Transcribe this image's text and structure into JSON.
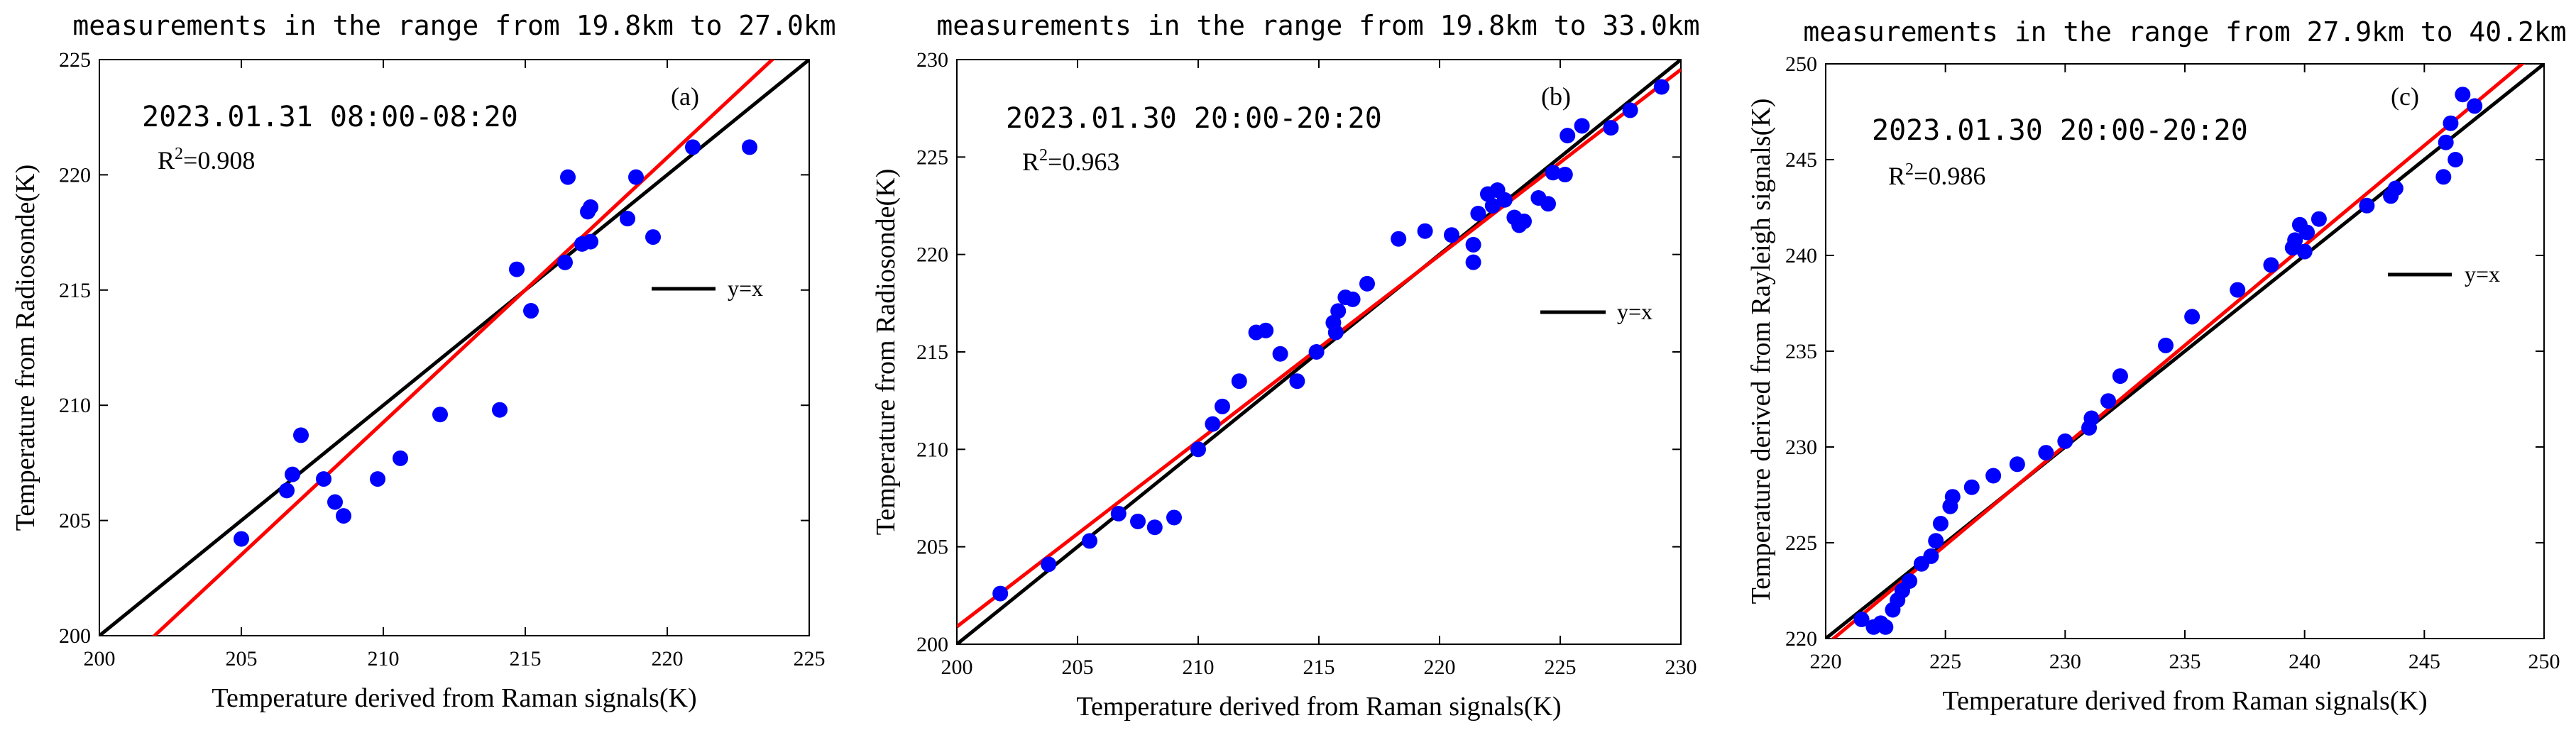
{
  "chart_data": [
    {
      "type": "scatter",
      "title": "measurements in the range from 19.8km to 27.0km",
      "xlabel": "Temperature derived from Raman signals(K)",
      "ylabel": "Temperature from Radiosonde(K)",
      "xlim": [
        200,
        225
      ],
      "ylim": [
        200,
        225
      ],
      "xticks": [
        "200",
        "205",
        "210",
        "215",
        "220",
        "225"
      ],
      "yticks": [
        "200",
        "205",
        "210",
        "215",
        "220",
        "225"
      ],
      "annotation": "2023.01.31 08:00-08:20",
      "r2_prefix": "R",
      "r2_sup": "2",
      "r2_value": "=0.908",
      "panel_label": "(a)",
      "legend_label": "y=x",
      "reference_line": {
        "name": "y=x",
        "color": "#000000"
      },
      "fit_line": {
        "slope": 1.149,
        "intercept": -32.03,
        "color": "#ff0000"
      },
      "point_color": "#0000ff",
      "points": [
        [
          205.0,
          204.2
        ],
        [
          206.6,
          206.3
        ],
        [
          206.8,
          207.0
        ],
        [
          207.1,
          208.7
        ],
        [
          207.9,
          206.8
        ],
        [
          208.3,
          205.8
        ],
        [
          208.6,
          205.2
        ],
        [
          209.8,
          206.8
        ],
        [
          210.6,
          207.7
        ],
        [
          212.0,
          209.6
        ],
        [
          214.1,
          209.8
        ],
        [
          214.7,
          215.9
        ],
        [
          215.2,
          214.1
        ],
        [
          216.4,
          216.2
        ],
        [
          216.5,
          219.9
        ],
        [
          217.0,
          217.0
        ],
        [
          217.2,
          218.4
        ],
        [
          217.3,
          218.6
        ],
        [
          217.3,
          217.1
        ],
        [
          218.6,
          218.1
        ],
        [
          218.9,
          219.9
        ],
        [
          219.5,
          217.3
        ],
        [
          220.9,
          221.2
        ],
        [
          222.9,
          221.2
        ]
      ]
    },
    {
      "type": "scatter",
      "title": "measurements in the range from 19.8km to 33.0km",
      "xlabel": "Temperature derived from Raman signals(K)",
      "ylabel": "Temperature from Radiosonde(K)",
      "xlim": [
        200,
        230
      ],
      "ylim": [
        200,
        230
      ],
      "xticks": [
        "200",
        "205",
        "210",
        "215",
        "220",
        "225",
        "230"
      ],
      "yticks": [
        "200",
        "205",
        "210",
        "215",
        "220",
        "225",
        "230"
      ],
      "annotation": "2023.01.30 20:00-20:20",
      "r2_prefix": "R",
      "r2_sup": "2",
      "r2_value": "=0.963",
      "panel_label": "(b)",
      "legend_label": "y=x",
      "reference_line": {
        "name": "y=x",
        "color": "#000000"
      },
      "fit_line": {
        "slope": 0.953,
        "intercept": 10.3,
        "color": "#ff0000"
      },
      "point_color": "#0000ff",
      "points": [
        [
          201.8,
          202.6
        ],
        [
          203.8,
          204.1
        ],
        [
          205.5,
          205.3
        ],
        [
          206.7,
          206.7
        ],
        [
          207.5,
          206.3
        ],
        [
          208.2,
          206.0
        ],
        [
          209.0,
          206.5
        ],
        [
          210.0,
          210.0
        ],
        [
          210.6,
          211.3
        ],
        [
          211.0,
          212.2
        ],
        [
          211.7,
          213.5
        ],
        [
          212.4,
          216.0
        ],
        [
          212.8,
          216.1
        ],
        [
          213.4,
          214.9
        ],
        [
          214.1,
          213.5
        ],
        [
          214.9,
          215.0
        ],
        [
          215.6,
          216.5
        ],
        [
          215.8,
          217.1
        ],
        [
          215.7,
          216.0
        ],
        [
          216.1,
          217.8
        ],
        [
          216.4,
          217.7
        ],
        [
          217.0,
          218.5
        ],
        [
          218.3,
          220.8
        ],
        [
          219.4,
          221.2
        ],
        [
          220.5,
          221.0
        ],
        [
          221.4,
          219.6
        ],
        [
          221.4,
          220.5
        ],
        [
          221.6,
          222.1
        ],
        [
          222.0,
          223.1
        ],
        [
          222.2,
          222.5
        ],
        [
          222.4,
          223.3
        ],
        [
          222.7,
          222.8
        ],
        [
          223.1,
          221.9
        ],
        [
          223.3,
          221.5
        ],
        [
          223.5,
          221.7
        ],
        [
          224.1,
          222.9
        ],
        [
          224.5,
          222.6
        ],
        [
          224.7,
          224.2
        ],
        [
          225.2,
          224.1
        ],
        [
          225.3,
          226.1
        ],
        [
          225.9,
          226.6
        ],
        [
          227.1,
          226.5
        ],
        [
          227.9,
          227.4
        ],
        [
          229.2,
          228.6
        ]
      ]
    },
    {
      "type": "scatter",
      "title": "measurements in the range from 27.9km to 40.2km",
      "xlabel": "Temperature derived from Raman signals(K)",
      "ylabel": "Temperature derived from Rayleigh signals(K)",
      "xlim": [
        220,
        250
      ],
      "ylim": [
        220,
        250
      ],
      "xticks": [
        "220",
        "225",
        "230",
        "235",
        "240",
        "245",
        "250"
      ],
      "yticks": [
        "220",
        "225",
        "230",
        "235",
        "240",
        "245",
        "250"
      ],
      "annotation": "2023.01.30 20:00-20:20",
      "r2_prefix": "R",
      "r2_sup": "2",
      "r2_value": "=0.986",
      "panel_label": "(c)",
      "legend_label": "y=x",
      "reference_line": {
        "name": "y=x",
        "color": "#000000"
      },
      "fit_line": {
        "slope": 1.043,
        "intercept": -9.8,
        "color": "#ff0000"
      },
      "point_color": "#0000ff",
      "points": [
        [
          221.5,
          221.0
        ],
        [
          222.0,
          220.6
        ],
        [
          222.3,
          220.8
        ],
        [
          222.5,
          220.6
        ],
        [
          222.8,
          221.5
        ],
        [
          223.0,
          222.0
        ],
        [
          223.2,
          222.5
        ],
        [
          223.5,
          223.0
        ],
        [
          224.0,
          223.9
        ],
        [
          224.4,
          224.3
        ],
        [
          224.6,
          225.1
        ],
        [
          224.8,
          226.0
        ],
        [
          225.2,
          226.9
        ],
        [
          225.3,
          227.4
        ],
        [
          226.1,
          227.9
        ],
        [
          227.0,
          228.5
        ],
        [
          228.0,
          229.1
        ],
        [
          229.2,
          229.7
        ],
        [
          230.0,
          230.3
        ],
        [
          231.0,
          231.0
        ],
        [
          231.1,
          231.5
        ],
        [
          231.8,
          232.4
        ],
        [
          232.3,
          233.7
        ],
        [
          234.2,
          235.3
        ],
        [
          235.3,
          236.8
        ],
        [
          237.2,
          238.2
        ],
        [
          238.6,
          239.5
        ],
        [
          239.5,
          240.4
        ],
        [
          239.6,
          240.8
        ],
        [
          239.8,
          241.6
        ],
        [
          240.1,
          241.2
        ],
        [
          240.0,
          240.2
        ],
        [
          240.6,
          241.9
        ],
        [
          242.6,
          242.6
        ],
        [
          243.6,
          243.1
        ],
        [
          243.8,
          243.5
        ],
        [
          245.8,
          244.1
        ],
        [
          245.9,
          245.9
        ],
        [
          246.1,
          246.9
        ],
        [
          246.3,
          245.0
        ],
        [
          246.6,
          248.4
        ],
        [
          247.1,
          247.8
        ]
      ]
    }
  ]
}
